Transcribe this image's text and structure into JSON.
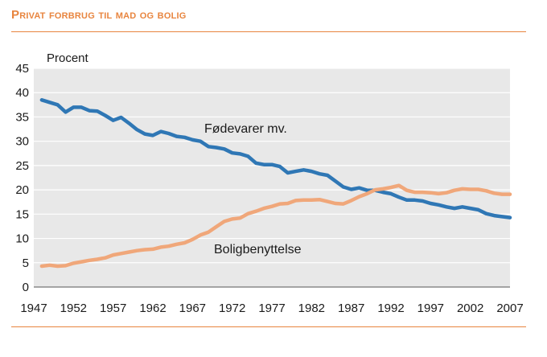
{
  "header": {
    "title": "Privat forbrug til mad og bolig"
  },
  "chart_data": {
    "type": "line",
    "title": "Privat forbrug til mad og bolig",
    "ylabel": "Procent",
    "xlabel": "",
    "xlim": [
      1947,
      2007
    ],
    "ylim": [
      0,
      45
    ],
    "x_ticks": [
      1947,
      1952,
      1957,
      1962,
      1967,
      1972,
      1977,
      1982,
      1987,
      1992,
      1997,
      2002,
      2007
    ],
    "y_ticks": [
      0,
      5,
      10,
      15,
      20,
      25,
      30,
      35,
      40,
      45
    ],
    "grid": "horizontal",
    "legend": "none",
    "series": [
      {
        "name": "Fødevarer mv.",
        "color": "#2f77b5",
        "x": [
          1948,
          1949,
          1950,
          1951,
          1952,
          1953,
          1954,
          1955,
          1956,
          1957,
          1958,
          1959,
          1960,
          1961,
          1962,
          1963,
          1964,
          1965,
          1966,
          1967,
          1968,
          1969,
          1970,
          1971,
          1972,
          1973,
          1974,
          1975,
          1976,
          1977,
          1978,
          1979,
          1980,
          1981,
          1982,
          1983,
          1984,
          1985,
          1986,
          1987,
          1988,
          1989,
          1990,
          1991,
          1992,
          1993,
          1994,
          1995,
          1996,
          1997,
          1998,
          1999,
          2000,
          2001,
          2002,
          2003,
          2004,
          2005,
          2006,
          2007
        ],
        "values": [
          38.5,
          38.0,
          37.5,
          36.0,
          37.0,
          37.0,
          36.3,
          36.2,
          35.3,
          34.3,
          34.9,
          33.7,
          32.4,
          31.5,
          31.2,
          32.0,
          31.6,
          31.0,
          30.8,
          30.3,
          30.0,
          28.9,
          28.7,
          28.4,
          27.6,
          27.4,
          26.9,
          25.5,
          25.2,
          25.2,
          24.8,
          23.5,
          23.8,
          24.1,
          23.8,
          23.3,
          23.0,
          21.8,
          20.6,
          20.1,
          20.4,
          19.9,
          19.9,
          19.5,
          19.2,
          18.5,
          17.9,
          17.9,
          17.7,
          17.2,
          16.9,
          16.5,
          16.2,
          16.5,
          16.2,
          15.9,
          15.1,
          14.7,
          14.5,
          14.3
        ]
      },
      {
        "name": "Boligbenyttelse",
        "color": "#f0a77a",
        "x": [
          1948,
          1949,
          1950,
          1951,
          1952,
          1953,
          1954,
          1955,
          1956,
          1957,
          1958,
          1959,
          1960,
          1961,
          1962,
          1963,
          1964,
          1965,
          1966,
          1967,
          1968,
          1969,
          1970,
          1971,
          1972,
          1973,
          1974,
          1975,
          1976,
          1977,
          1978,
          1979,
          1980,
          1981,
          1982,
          1983,
          1984,
          1985,
          1986,
          1987,
          1988,
          1989,
          1990,
          1991,
          1992,
          1993,
          1994,
          1995,
          1996,
          1997,
          1998,
          1999,
          2000,
          2001,
          2002,
          2003,
          2004,
          2005,
          2006,
          2007
        ],
        "values": [
          4.3,
          4.5,
          4.3,
          4.4,
          4.9,
          5.2,
          5.5,
          5.7,
          6.0,
          6.6,
          6.9,
          7.2,
          7.5,
          7.7,
          7.8,
          8.2,
          8.4,
          8.8,
          9.1,
          9.8,
          10.7,
          11.3,
          12.4,
          13.5,
          14.0,
          14.2,
          15.1,
          15.6,
          16.2,
          16.6,
          17.1,
          17.2,
          17.8,
          17.9,
          17.9,
          18.0,
          17.6,
          17.2,
          17.1,
          17.8,
          18.6,
          19.2,
          20.0,
          20.2,
          20.5,
          20.9,
          19.9,
          19.5,
          19.5,
          19.4,
          19.2,
          19.4,
          19.9,
          20.2,
          20.1,
          20.1,
          19.8,
          19.3,
          19.1,
          19.1
        ]
      }
    ],
    "annotations": [
      {
        "text": "Fødevarer mv.",
        "series": 0
      },
      {
        "text": "Boligbenyttelse",
        "series": 1
      }
    ]
  }
}
